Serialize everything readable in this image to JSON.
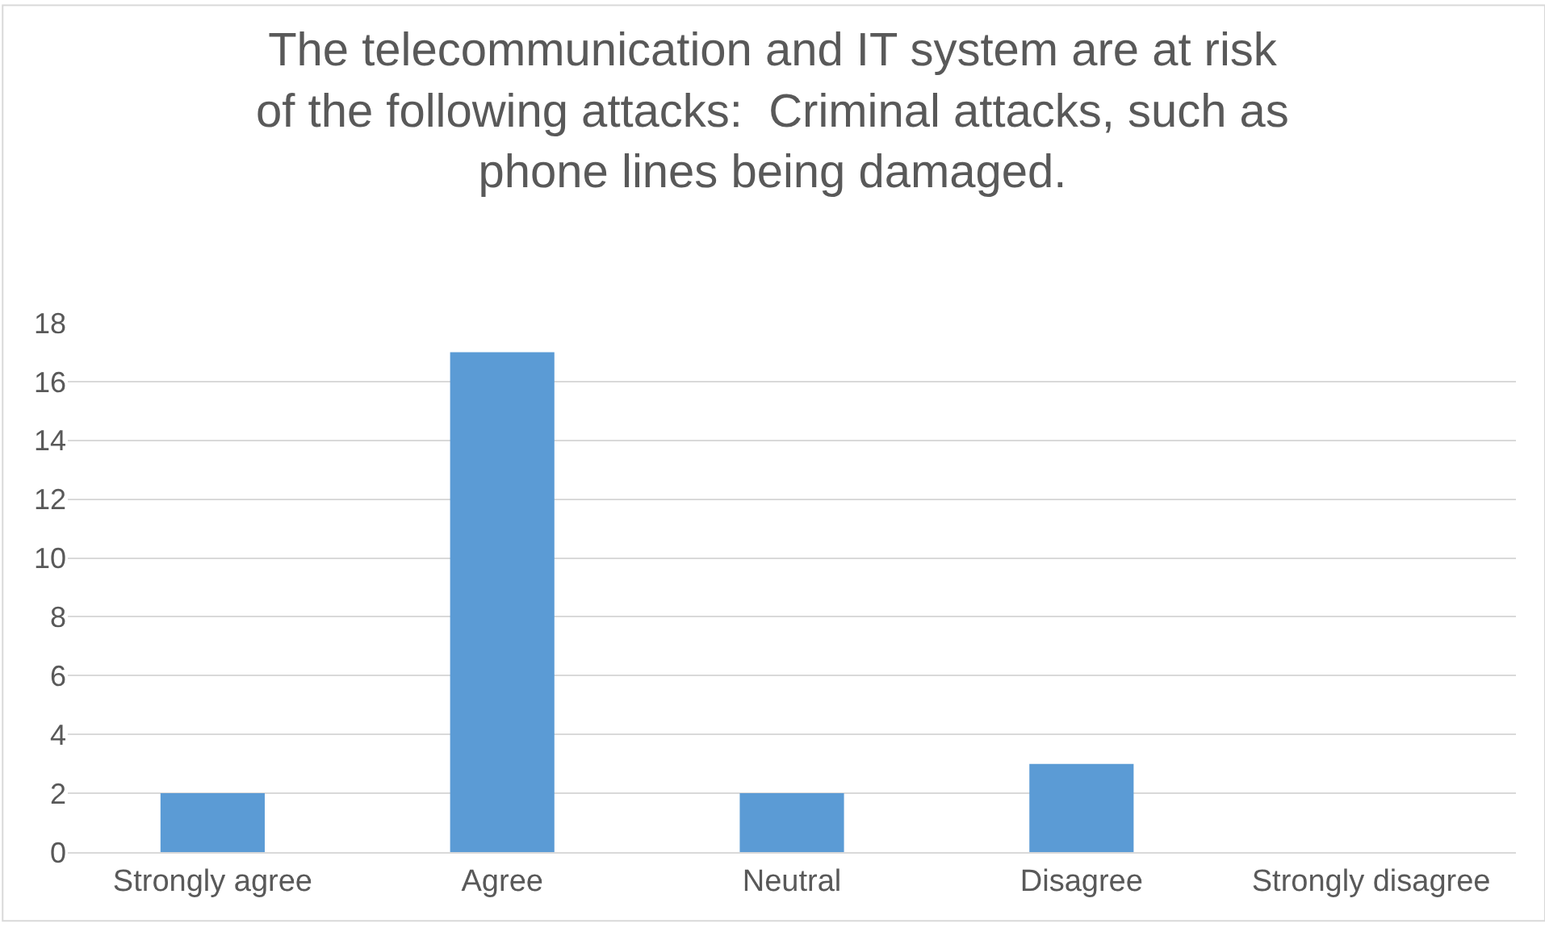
{
  "chart_data": {
    "type": "bar",
    "title": "The telecommunication and IT system are at risk\nof the following attacks:  Criminal attacks, such as\nphone lines being damaged.",
    "categories": [
      "Strongly agree",
      "Agree",
      "Neutral",
      "Disagree",
      "Strongly disagree"
    ],
    "values": [
      2,
      17,
      2,
      3,
      0
    ],
    "color": "#5b9bd5",
    "ylim": [
      0,
      18
    ],
    "yticks": [
      0,
      2,
      4,
      6,
      8,
      10,
      12,
      14,
      16,
      18
    ],
    "grid": "y"
  }
}
